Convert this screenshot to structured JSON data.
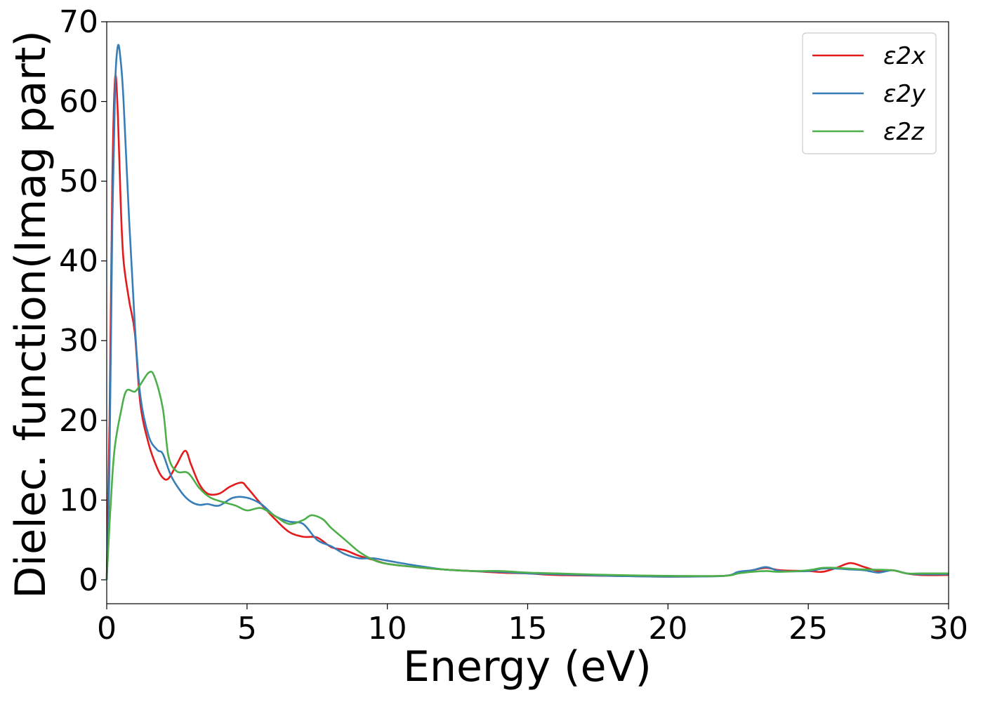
{
  "chart_data": {
    "type": "line",
    "title": "",
    "xlabel": "Energy (eV)",
    "ylabel": "Dielec. function(Imag part)",
    "xlim": [
      0,
      30
    ],
    "ylim": [
      -3,
      70
    ],
    "xticks": [
      0,
      5,
      10,
      15,
      20,
      25,
      30
    ],
    "yticks": [
      0,
      10,
      20,
      30,
      40,
      50,
      60,
      70
    ],
    "grid": false,
    "legend_position": "top-right",
    "series": [
      {
        "name": "ε2x",
        "color": "#e41a1c",
        "points": [
          [
            0,
            0
          ],
          [
            0.1,
            20
          ],
          [
            0.2,
            50
          ],
          [
            0.3,
            63
          ],
          [
            0.4,
            58
          ],
          [
            0.5,
            47
          ],
          [
            0.6,
            40
          ],
          [
            0.8,
            35
          ],
          [
            1.0,
            31
          ],
          [
            1.2,
            22
          ],
          [
            1.5,
            17
          ],
          [
            1.8,
            14
          ],
          [
            2.0,
            12.8
          ],
          [
            2.2,
            12.7
          ],
          [
            2.5,
            14.5
          ],
          [
            2.8,
            16.2
          ],
          [
            3.0,
            14.5
          ],
          [
            3.3,
            12.0
          ],
          [
            3.6,
            10.8
          ],
          [
            4.0,
            10.8
          ],
          [
            4.4,
            11.7
          ],
          [
            4.8,
            12.2
          ],
          [
            5.0,
            11.6
          ],
          [
            5.5,
            9.5
          ],
          [
            6.0,
            7.6
          ],
          [
            6.5,
            6.0
          ],
          [
            7.0,
            5.4
          ],
          [
            7.5,
            5.3
          ],
          [
            8.0,
            4.1
          ],
          [
            8.5,
            3.7
          ],
          [
            9.0,
            3.0
          ],
          [
            9.5,
            2.5
          ],
          [
            10,
            2.0
          ],
          [
            11,
            1.6
          ],
          [
            12,
            1.3
          ],
          [
            13,
            1.1
          ],
          [
            14,
            0.9
          ],
          [
            15,
            0.8
          ],
          [
            16,
            0.6
          ],
          [
            18,
            0.5
          ],
          [
            20,
            0.4
          ],
          [
            22,
            0.5
          ],
          [
            22.5,
            0.9
          ],
          [
            23,
            1.2
          ],
          [
            23.5,
            1.5
          ],
          [
            24,
            1.2
          ],
          [
            25,
            1.1
          ],
          [
            25.5,
            1.0
          ],
          [
            26,
            1.5
          ],
          [
            26.5,
            2.1
          ],
          [
            27,
            1.6
          ],
          [
            27.5,
            1.1
          ],
          [
            28,
            1.2
          ],
          [
            28.5,
            0.8
          ],
          [
            29,
            0.6
          ],
          [
            30,
            0.6
          ]
        ]
      },
      {
        "name": "ε2y",
        "color": "#377eb8",
        "points": [
          [
            0,
            0
          ],
          [
            0.1,
            15
          ],
          [
            0.2,
            45
          ],
          [
            0.3,
            62
          ],
          [
            0.4,
            67
          ],
          [
            0.5,
            65
          ],
          [
            0.6,
            60
          ],
          [
            0.8,
            45
          ],
          [
            1.0,
            32
          ],
          [
            1.2,
            23
          ],
          [
            1.5,
            18
          ],
          [
            1.8,
            16.3
          ],
          [
            2.0,
            15.8
          ],
          [
            2.3,
            13.0
          ],
          [
            2.7,
            10.8
          ],
          [
            3.0,
            9.8
          ],
          [
            3.3,
            9.4
          ],
          [
            3.6,
            9.5
          ],
          [
            4.0,
            9.3
          ],
          [
            4.5,
            10.3
          ],
          [
            5.0,
            10.3
          ],
          [
            5.5,
            9.5
          ],
          [
            6.0,
            8.0
          ],
          [
            6.5,
            7.3
          ],
          [
            7.0,
            7.0
          ],
          [
            7.5,
            5.0
          ],
          [
            8.0,
            4.2
          ],
          [
            8.5,
            3.2
          ],
          [
            9.0,
            2.7
          ],
          [
            9.5,
            2.7
          ],
          [
            10,
            2.4
          ],
          [
            11,
            1.8
          ],
          [
            12,
            1.3
          ],
          [
            13,
            1.1
          ],
          [
            14,
            1.0
          ],
          [
            15,
            0.8
          ],
          [
            16,
            0.7
          ],
          [
            18,
            0.5
          ],
          [
            20,
            0.4
          ],
          [
            22,
            0.5
          ],
          [
            22.5,
            1.0
          ],
          [
            23,
            1.2
          ],
          [
            23.5,
            1.6
          ],
          [
            24,
            1.1
          ],
          [
            25,
            1.1
          ],
          [
            25.5,
            1.4
          ],
          [
            26,
            1.4
          ],
          [
            26.5,
            1.3
          ],
          [
            27,
            1.2
          ],
          [
            27.5,
            0.9
          ],
          [
            28,
            1.2
          ],
          [
            28.5,
            0.8
          ],
          [
            29,
            0.7
          ],
          [
            30,
            0.7
          ]
        ]
      },
      {
        "name": "ε2z",
        "color": "#4daf4a",
        "points": [
          [
            0,
            0
          ],
          [
            0.1,
            7
          ],
          [
            0.2,
            13
          ],
          [
            0.3,
            17
          ],
          [
            0.5,
            21
          ],
          [
            0.7,
            23.7
          ],
          [
            1.0,
            23.6
          ],
          [
            1.2,
            24.5
          ],
          [
            1.5,
            26.0
          ],
          [
            1.7,
            25.5
          ],
          [
            2.0,
            21.5
          ],
          [
            2.2,
            15.5
          ],
          [
            2.5,
            13.6
          ],
          [
            2.9,
            13.4
          ],
          [
            3.3,
            11.5
          ],
          [
            3.7,
            10.3
          ],
          [
            4.2,
            9.7
          ],
          [
            4.6,
            9.3
          ],
          [
            5.0,
            8.7
          ],
          [
            5.5,
            9.0
          ],
          [
            6.0,
            8.0
          ],
          [
            6.5,
            7.0
          ],
          [
            7.0,
            7.5
          ],
          [
            7.3,
            8.1
          ],
          [
            7.7,
            7.6
          ],
          [
            8.0,
            6.5
          ],
          [
            8.5,
            5.0
          ],
          [
            9.0,
            3.5
          ],
          [
            9.5,
            2.5
          ],
          [
            10,
            2.0
          ],
          [
            11,
            1.6
          ],
          [
            12,
            1.3
          ],
          [
            13,
            1.1
          ],
          [
            14,
            1.1
          ],
          [
            15,
            0.9
          ],
          [
            16,
            0.8
          ],
          [
            18,
            0.6
          ],
          [
            20,
            0.5
          ],
          [
            22,
            0.5
          ],
          [
            22.5,
            0.8
          ],
          [
            23,
            1.0
          ],
          [
            23.5,
            1.1
          ],
          [
            24,
            1.0
          ],
          [
            25,
            1.2
          ],
          [
            25.5,
            1.5
          ],
          [
            26,
            1.5
          ],
          [
            26.5,
            1.4
          ],
          [
            27,
            1.3
          ],
          [
            28,
            1.2
          ],
          [
            28.5,
            0.8
          ],
          [
            29,
            0.8
          ],
          [
            30,
            0.8
          ]
        ]
      }
    ]
  }
}
